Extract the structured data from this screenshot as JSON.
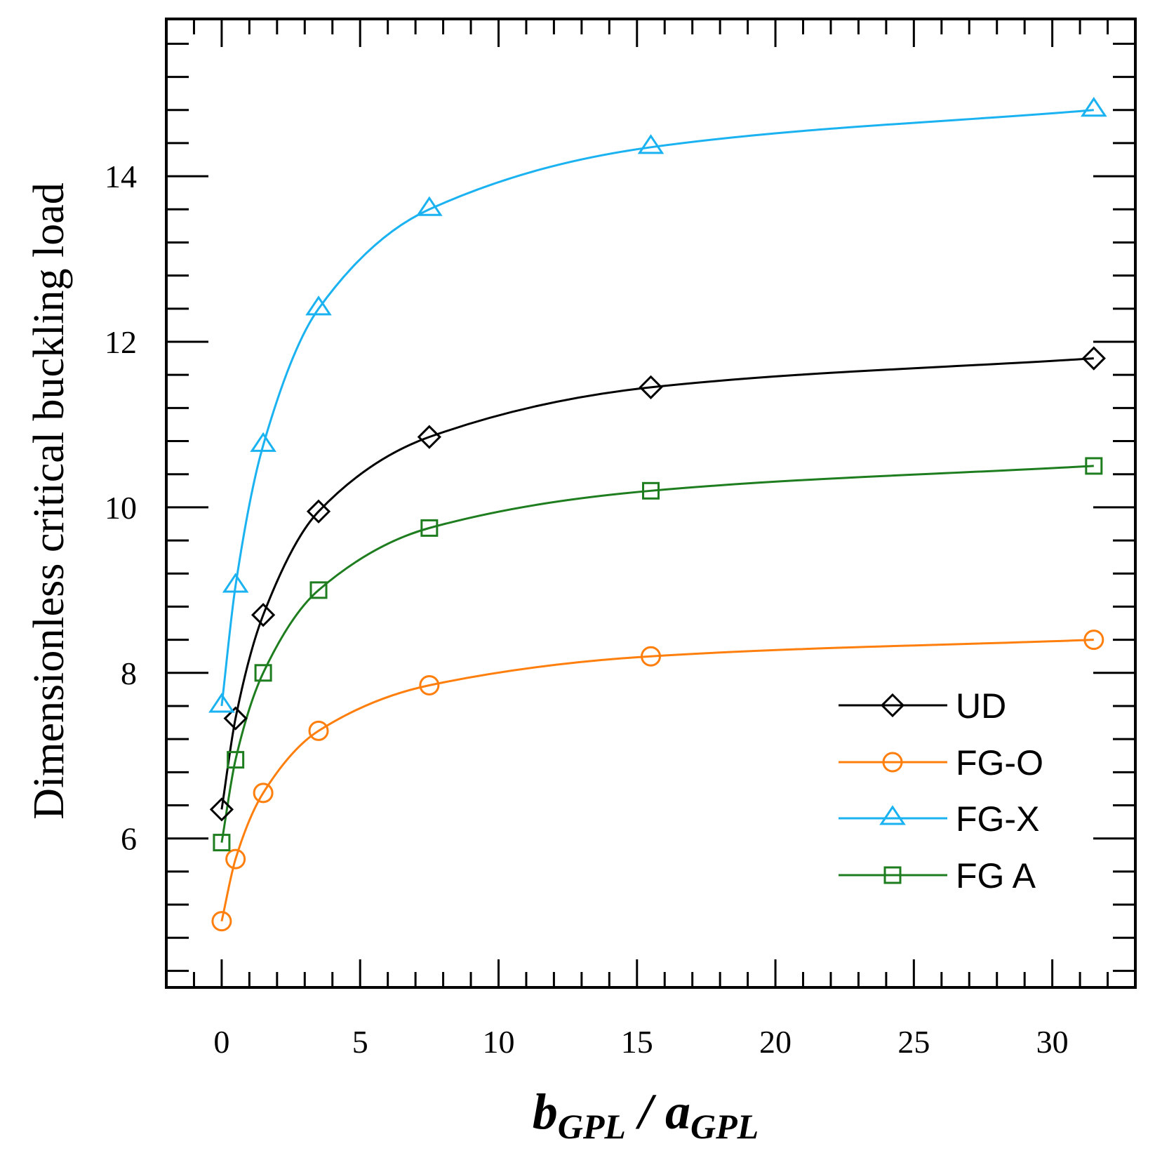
{
  "chart_data": {
    "type": "line",
    "title": "",
    "xlabel": {
      "main1": "b",
      "sub1": "GPL",
      "sep": " / ",
      "main2": "a",
      "sub2": "GPL"
    },
    "ylabel": "Dimensionless critical buckling load",
    "xlim": [
      -2,
      33
    ],
    "ylim": [
      4.2,
      15.9
    ],
    "xticks": [
      0,
      5,
      10,
      15,
      20,
      25,
      30
    ],
    "yticks": [
      6,
      8,
      10,
      12,
      14
    ],
    "grid": false,
    "legend_position": "bottom-right",
    "x": [
      0,
      0.5,
      1.5,
      3.5,
      7.5,
      15.5,
      31.5
    ],
    "series": [
      {
        "name": "UD",
        "color": "#000000",
        "marker": "diamond",
        "values": [
          6.35,
          7.45,
          8.7,
          9.95,
          10.85,
          11.45,
          11.8
        ]
      },
      {
        "name": "FG-O",
        "color": "#ff7f0e",
        "marker": "circle",
        "values": [
          5.0,
          5.75,
          6.55,
          7.3,
          7.85,
          8.2,
          8.4
        ]
      },
      {
        "name": "FG-X",
        "color": "#1ab2f0",
        "marker": "triangle",
        "values": [
          7.6,
          9.05,
          10.75,
          12.4,
          13.6,
          14.35,
          14.8
        ]
      },
      {
        "name": "FG A",
        "color": "#1e7d1e",
        "marker": "square",
        "values": [
          5.95,
          6.95,
          8.0,
          9.0,
          9.75,
          10.2,
          10.5
        ]
      }
    ]
  }
}
